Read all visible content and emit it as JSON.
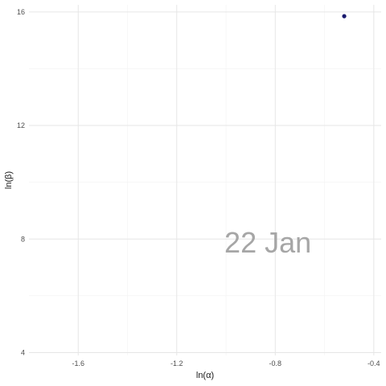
{
  "chart_data": {
    "type": "scatter",
    "xlabel": "ln(α)",
    "ylabel": "ln(β)",
    "xlim": [
      -1.8,
      -0.37
    ],
    "ylim": [
      3.9,
      16.25
    ],
    "x_ticks": [
      -1.6,
      -1.2,
      -0.8,
      -0.4
    ],
    "y_ticks": [
      4,
      8,
      12,
      16
    ],
    "x_minor": [
      -1.4,
      -1.0,
      -0.6
    ],
    "y_minor": [
      6,
      10,
      14
    ],
    "tick_labels_x": [
      "-1.6",
      "-1.2",
      "-0.8",
      "-0.4"
    ],
    "tick_labels_y": [
      "4",
      "8",
      "12",
      "16"
    ],
    "grid": true,
    "points": [
      {
        "x": -0.52,
        "y": 15.85
      }
    ],
    "point_color": "#1a1a6e",
    "annotation": "22 Jan",
    "annotation_pos": {
      "x": -0.83,
      "y": 7.9
    }
  }
}
